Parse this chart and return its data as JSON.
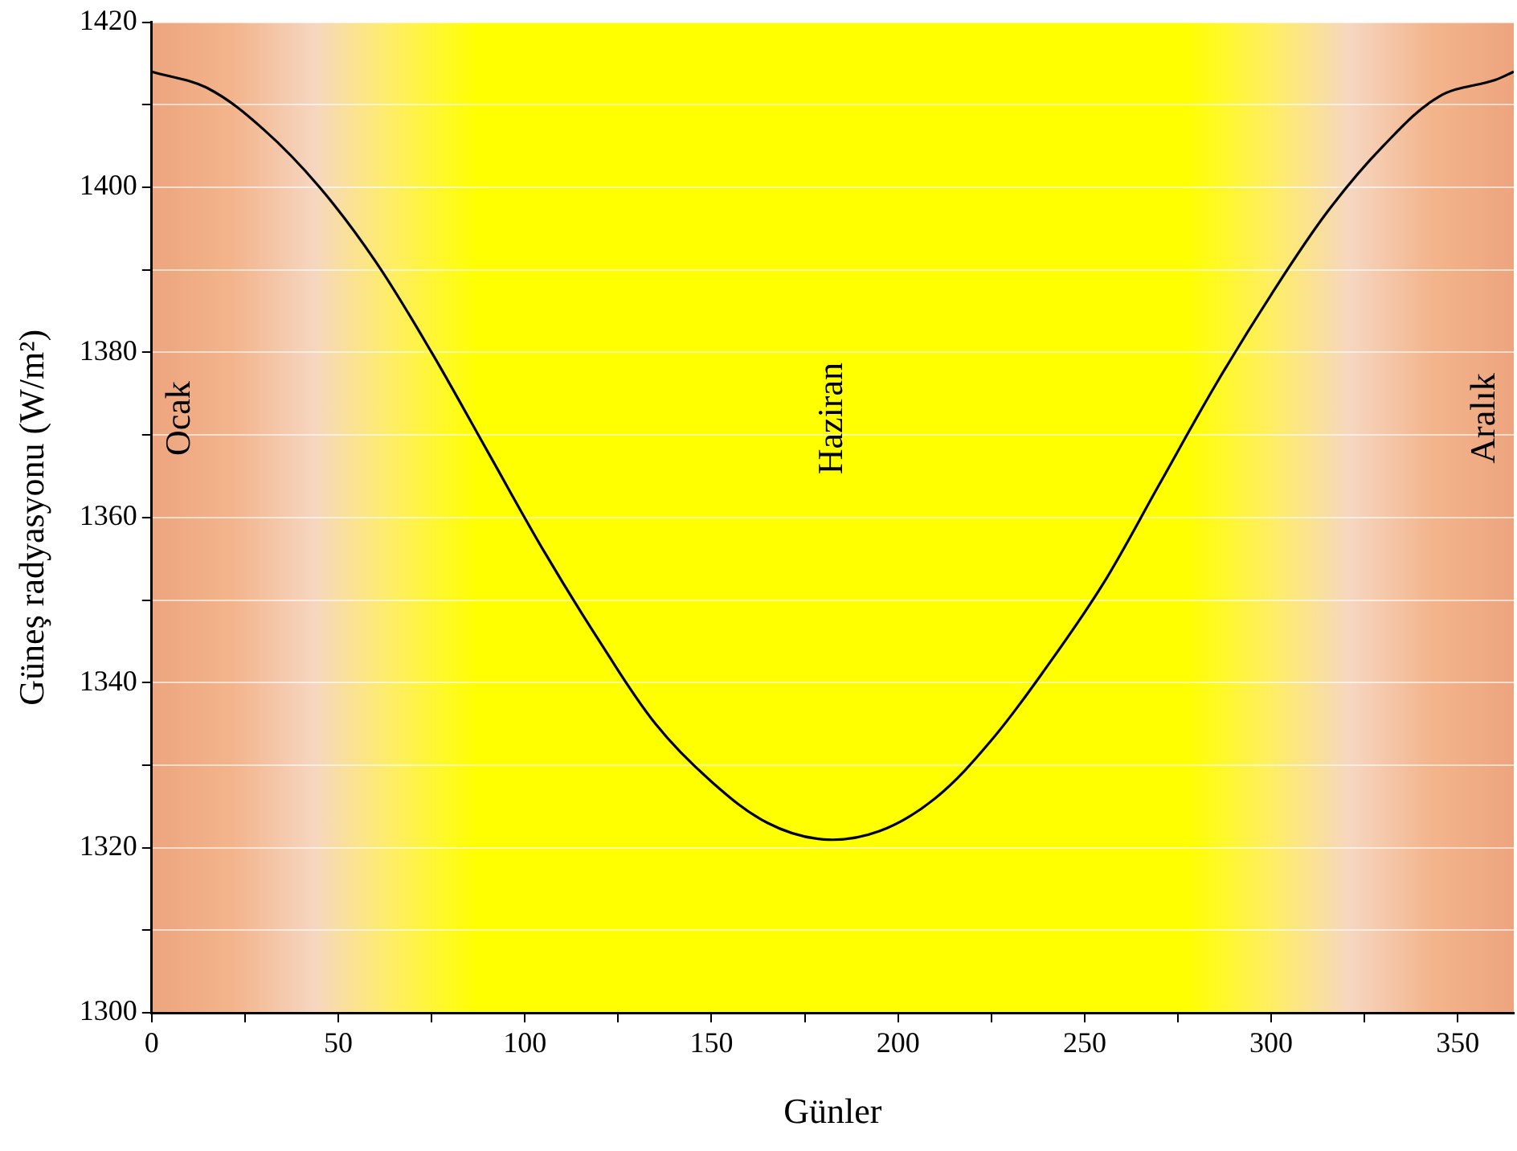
{
  "chart_data": {
    "type": "line",
    "xlabel": "Günler",
    "ylabel": "Güneş radyasyonu (W/m²)",
    "x": [
      0,
      15,
      30,
      45,
      60,
      75,
      90,
      105,
      120,
      135,
      150,
      165,
      180,
      195,
      210,
      225,
      240,
      255,
      270,
      285,
      300,
      315,
      330,
      345,
      360,
      365
    ],
    "series": [
      {
        "color": "#000000",
        "values": [
          1414,
          1412,
          1407,
          1400,
          1391,
          1380,
          1368,
          1356,
          1345,
          1335,
          1328,
          1323,
          1321,
          1322,
          1326,
          1333,
          1342,
          1352,
          1364,
          1376,
          1387,
          1397,
          1405,
          1411,
          1413,
          1414
        ]
      }
    ],
    "xlim": [
      0,
      365
    ],
    "xticks": [
      0,
      {
        "value": 25,
        "label": null
      },
      50,
      {
        "value": 75,
        "label": null
      },
      100,
      {
        "value": 125,
        "label": null
      },
      150,
      {
        "value": 175,
        "label": null
      },
      200,
      {
        "value": 225,
        "label": null
      },
      250,
      {
        "value": 275,
        "label": null
      },
      300,
      {
        "value": 325,
        "label": null
      },
      350
    ],
    "ylim": [
      1300,
      1420
    ],
    "yticks": [
      1300,
      {
        "value": 1310,
        "label": null
      },
      1320,
      {
        "value": 1330,
        "label": null
      },
      1340,
      {
        "value": 1350,
        "label": null
      },
      1360,
      {
        "value": 1370,
        "label": null
      },
      1380,
      {
        "value": 1390,
        "label": null
      },
      1400,
      {
        "value": 1410,
        "label": null
      },
      1420
    ],
    "annotations": [
      "Ocak",
      "Haziran",
      "Aralık"
    ],
    "grid": "y",
    "legend": false,
    "marker": "none",
    "line_style": "solid"
  }
}
